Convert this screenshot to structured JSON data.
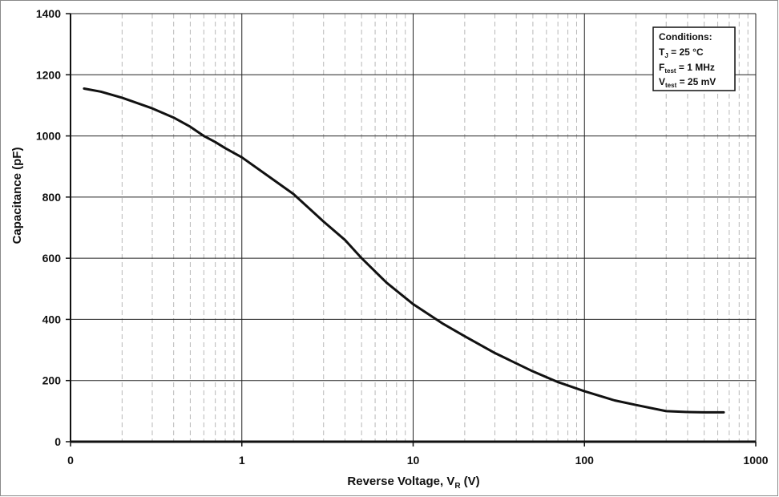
{
  "chart_data": {
    "type": "line",
    "xscale": "log",
    "xlim": [
      0.1,
      1000
    ],
    "ylim": [
      0,
      1400
    ],
    "grid": true,
    "xlabel": "Reverse Voltage, V",
    "xlabel_sub": "R",
    "xlabel_unit": "(V)",
    "ylabel": "Capacitance (pF)",
    "x_ticks": [
      0.1,
      1,
      10,
      100,
      1000
    ],
    "x_tick_labels": [
      "0",
      "1",
      "10",
      "100",
      "1000"
    ],
    "y_ticks": [
      0,
      200,
      400,
      600,
      800,
      1000,
      1200,
      1400
    ],
    "y_tick_labels": [
      "0",
      "200",
      "400",
      "600",
      "800",
      "1000",
      "1200",
      "1400"
    ],
    "series": [
      {
        "x": [
          0.12,
          0.15,
          0.2,
          0.3,
          0.4,
          0.5,
          0.6,
          0.7,
          0.8,
          1,
          1.5,
          2,
          3,
          4,
          5,
          7,
          10,
          15,
          20,
          30,
          50,
          70,
          100,
          150,
          200,
          300,
          400,
          500,
          600,
          650
        ],
        "y": [
          1155,
          1145,
          1125,
          1090,
          1060,
          1030,
          1000,
          980,
          960,
          930,
          860,
          810,
          720,
          660,
          600,
          520,
          450,
          385,
          345,
          290,
          230,
          195,
          165,
          135,
          120,
          100,
          97,
          96,
          96,
          96
        ]
      }
    ],
    "annotation": {
      "title": "Conditions:",
      "lines": [
        {
          "main": "T",
          "sub": "J",
          "rest": " = 25 °C"
        },
        {
          "main": "F",
          "sub": "test",
          "rest": " = 1 MHz"
        },
        {
          "main": "V",
          "sub": "test",
          "rest": " = 25 mV"
        }
      ]
    }
  }
}
